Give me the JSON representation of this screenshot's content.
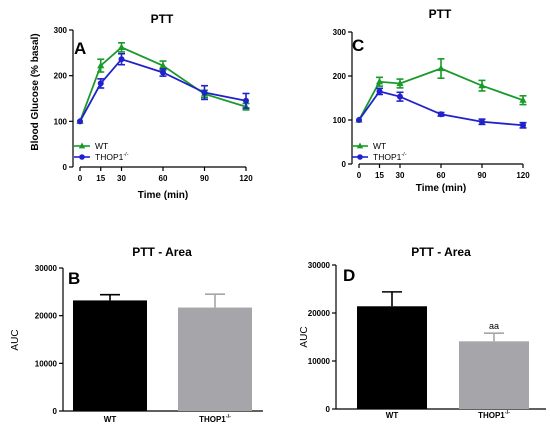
{
  "chart_data": [
    {
      "panel": "A",
      "type": "line",
      "title": "PTT",
      "xlabel": "Time (min)",
      "ylabel": "Blood Glucose (% basal)",
      "x": [
        0,
        15,
        30,
        60,
        90,
        120
      ],
      "xlim": [
        0,
        120
      ],
      "ylim": [
        0,
        300
      ],
      "yticks": [
        0,
        100,
        200,
        300
      ],
      "legend_position": "bottom-left",
      "series": [
        {
          "name": "WT",
          "marker": "triangle",
          "color": "#1a9a2a",
          "values": [
            100,
            222,
            262,
            222,
            160,
            132
          ],
          "errors": [
            0,
            14,
            10,
            10,
            8,
            7
          ]
        },
        {
          "name": "THOP1",
          "name_superscript": "-/-",
          "marker": "circle",
          "color": "#2222cc",
          "values": [
            100,
            183,
            236,
            207,
            163,
            145
          ],
          "errors": [
            0,
            10,
            12,
            8,
            15,
            16
          ]
        }
      ]
    },
    {
      "panel": "C",
      "type": "line",
      "title": "PTT",
      "xlabel": "Time (min)",
      "ylabel": "",
      "x": [
        0,
        15,
        30,
        60,
        90,
        120
      ],
      "xlim": [
        0,
        120
      ],
      "ylim": [
        0,
        300
      ],
      "yticks": [
        0,
        100,
        200,
        300
      ],
      "legend_position": "bottom-left",
      "series": [
        {
          "name": "WT",
          "marker": "triangle",
          "color": "#1a9a2a",
          "values": [
            100,
            187,
            183,
            217,
            178,
            145
          ],
          "errors": [
            0,
            10,
            10,
            22,
            12,
            10
          ]
        },
        {
          "name": "THOP1",
          "name_superscript": "-/-",
          "marker": "circle",
          "color": "#2222cc",
          "values": [
            100,
            165,
            153,
            113,
            96,
            88
          ],
          "errors": [
            0,
            7,
            10,
            4,
            6,
            6
          ]
        }
      ]
    },
    {
      "panel": "B",
      "type": "bar",
      "title": "PTT - Area",
      "ylabel": "AUC",
      "xlabel": "",
      "categories": [
        {
          "label": "WT",
          "superscript": ""
        },
        {
          "label": "THOP1",
          "superscript": "-/-"
        }
      ],
      "values": [
        23200,
        21700
      ],
      "errors": [
        1200,
        2800
      ],
      "colors": [
        "#000000",
        "#a6a6aa"
      ],
      "ylim": [
        0,
        30000
      ],
      "yticks": [
        0,
        10000,
        20000,
        30000
      ],
      "annotations": [
        "",
        ""
      ]
    },
    {
      "panel": "D",
      "type": "bar",
      "title": "PTT - Area",
      "ylabel": "AUC",
      "xlabel": "",
      "categories": [
        {
          "label": "WT",
          "superscript": ""
        },
        {
          "label": "THOP1",
          "superscript": "-/-"
        }
      ],
      "values": [
        21400,
        14100
      ],
      "errors": [
        3000,
        1700
      ],
      "colors": [
        "#000000",
        "#a6a6aa"
      ],
      "ylim": [
        0,
        30000
      ],
      "yticks": [
        0,
        10000,
        20000,
        30000
      ],
      "annotations": [
        "",
        "aa"
      ]
    }
  ]
}
